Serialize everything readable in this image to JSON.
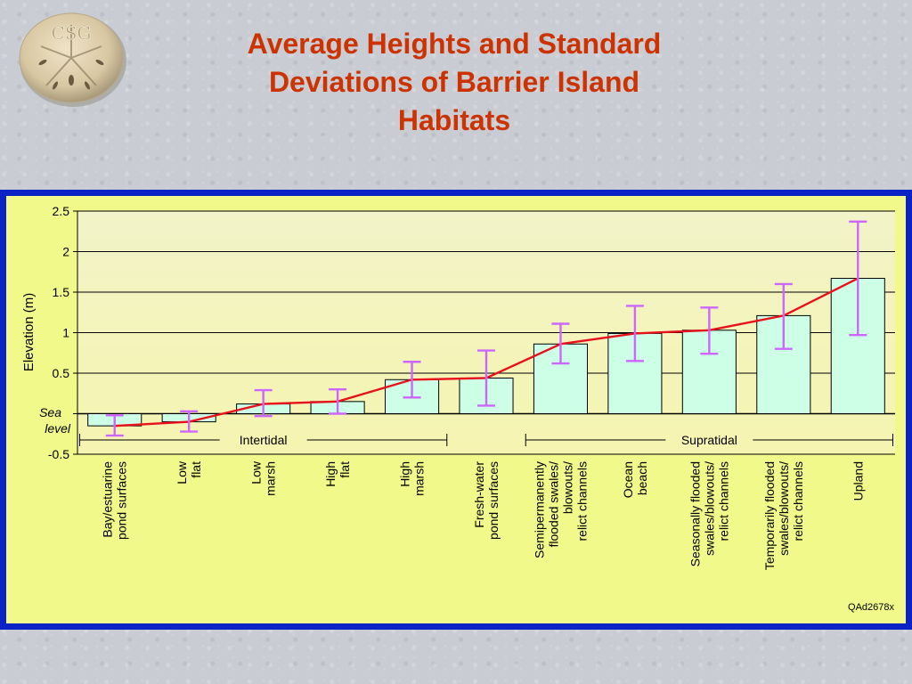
{
  "logo": {
    "text": "CSG"
  },
  "title": {
    "line1": "Average Heights and Standard",
    "line2": "Deviations of Barrier Island",
    "line3": "Habitats"
  },
  "chart_data": {
    "type": "bar",
    "ylabel": "Elevation (m)",
    "ylim": [
      -0.5,
      2.5
    ],
    "yticks": [
      "2.5",
      "2",
      "1.5",
      "1",
      "0.5",
      "-0.5"
    ],
    "sea_level_label": [
      "Sea",
      "level"
    ],
    "categories": [
      [
        "Bay/estuarine",
        "pond surfaces"
      ],
      [
        "Low",
        "flat"
      ],
      [
        "Low",
        "marsh"
      ],
      [
        "High",
        "flat"
      ],
      [
        "High",
        "marsh"
      ],
      [
        "Fresh-water",
        "pond surfaces"
      ],
      [
        "Semipermanently",
        "flooded swales/",
        "blowouts/",
        "relict channels"
      ],
      [
        "Ocean",
        "beach"
      ],
      [
        "Seasonally flooded",
        "swales/blowouts/",
        "relict channels"
      ],
      [
        "Temporarily flooded",
        "swales/blowouts/",
        "relict channels"
      ],
      [
        "Upland"
      ]
    ],
    "values": [
      -0.15,
      -0.1,
      0.12,
      0.15,
      0.42,
      0.44,
      0.86,
      0.99,
      1.03,
      1.21,
      1.67
    ],
    "error_low": [
      -0.27,
      -0.22,
      -0.03,
      0.0,
      0.2,
      0.1,
      0.62,
      0.65,
      0.74,
      0.8,
      0.97
    ],
    "error_high": [
      -0.02,
      0.03,
      0.29,
      0.3,
      0.64,
      0.78,
      1.11,
      1.33,
      1.31,
      1.6,
      2.37
    ],
    "groups": [
      {
        "label": "Intertidal",
        "from": 0,
        "to": 4
      },
      {
        "label": "Supratidal",
        "from": 6,
        "to": 10
      }
    ],
    "code": "QAd2678x",
    "colors": {
      "bar_fill": "#ccffe6",
      "trend_line": "#e8101a",
      "error_bar": "#cc66ff",
      "plot_background_top": "#f2f3c8",
      "plot_background_bottom": "#f5f4b0",
      "panel": "#f0f98a",
      "frame": "#0b22c4",
      "title": "#cc3300"
    }
  }
}
